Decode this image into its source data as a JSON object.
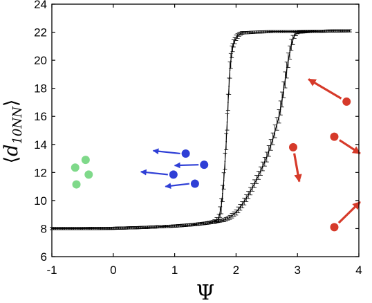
{
  "chart_data": {
    "type": "line",
    "title": "",
    "xlabel": "Ψ",
    "ylabel": "⟨d10NN⟩",
    "ylabel_parts": {
      "open": "⟨",
      "d": "d",
      "sub": "10NN",
      "close": "⟩"
    },
    "xlim": [
      -1,
      4
    ],
    "ylim": [
      6,
      24
    ],
    "xticks": [
      -1,
      0,
      1,
      2,
      3,
      4
    ],
    "yticks": [
      6,
      8,
      10,
      12,
      14,
      16,
      18,
      20,
      22,
      24
    ],
    "grid": false,
    "legend": "none",
    "series": [
      {
        "values": [
          [
            -1.0,
            8.0
          ],
          [
            -0.5,
            8.0
          ],
          [
            0.0,
            8.02
          ],
          [
            0.5,
            8.08
          ],
          [
            1.0,
            8.18
          ],
          [
            1.3,
            8.28
          ],
          [
            1.5,
            8.38
          ],
          [
            1.65,
            8.5
          ],
          [
            1.72,
            8.75
          ],
          [
            1.76,
            9.6
          ],
          [
            1.8,
            11.4
          ],
          [
            1.84,
            14.2
          ],
          [
            1.87,
            17.0
          ],
          [
            1.9,
            19.3
          ],
          [
            1.93,
            20.6
          ],
          [
            1.96,
            21.2
          ],
          [
            2.0,
            21.6
          ],
          [
            2.05,
            21.85
          ],
          [
            2.1,
            21.95
          ],
          [
            2.3,
            22.0
          ],
          [
            2.6,
            22.05
          ],
          [
            3.0,
            22.05
          ],
          [
            3.5,
            22.08
          ],
          [
            3.85,
            22.1
          ]
        ]
      },
      {
        "values": [
          [
            -1.0,
            8.0
          ],
          [
            -0.5,
            8.0
          ],
          [
            0.0,
            8.02
          ],
          [
            0.5,
            8.08
          ],
          [
            1.0,
            8.18
          ],
          [
            1.3,
            8.28
          ],
          [
            1.5,
            8.38
          ],
          [
            1.65,
            8.48
          ],
          [
            1.8,
            8.6
          ],
          [
            1.9,
            8.8
          ],
          [
            2.0,
            9.15
          ],
          [
            2.1,
            9.7
          ],
          [
            2.2,
            10.4
          ],
          [
            2.3,
            11.2
          ],
          [
            2.4,
            12.1
          ],
          [
            2.5,
            13.1
          ],
          [
            2.6,
            14.4
          ],
          [
            2.7,
            16.0
          ],
          [
            2.75,
            17.2
          ],
          [
            2.8,
            18.6
          ],
          [
            2.85,
            20.0
          ],
          [
            2.9,
            21.1
          ],
          [
            2.95,
            21.8
          ],
          [
            3.0,
            22.0
          ],
          [
            3.2,
            22.05
          ],
          [
            3.5,
            22.08
          ],
          [
            3.85,
            22.1
          ]
        ]
      }
    ],
    "insets": {
      "green_dots": {
        "color": "#7fd98a",
        "points": [
          [
            -0.45,
            12.9
          ],
          [
            -0.62,
            12.35
          ],
          [
            -0.4,
            11.85
          ],
          [
            -0.6,
            11.15
          ]
        ]
      },
      "blue_dots": {
        "color": "#2f3fd6",
        "arrows": [
          {
            "from": [
              1.18,
              13.35
            ],
            "to": [
              0.65,
              13.55
            ]
          },
          {
            "from": [
              1.48,
              12.55
            ],
            "to": [
              1.0,
              12.5
            ]
          },
          {
            "from": [
              0.98,
              11.85
            ],
            "to": [
              0.45,
              12.05
            ]
          },
          {
            "from": [
              1.33,
              11.2
            ],
            "to": [
              0.85,
              11.0
            ]
          }
        ]
      },
      "red_dots": {
        "color": "#d63a2a",
        "arrows": [
          {
            "from": [
              3.8,
              17.05
            ],
            "to": [
              3.18,
              18.65
            ]
          },
          {
            "from": [
              3.6,
              14.55
            ],
            "to": [
              4.02,
              13.35
            ]
          },
          {
            "from": [
              2.93,
              13.8
            ],
            "to": [
              3.03,
              11.35
            ]
          },
          {
            "from": [
              3.6,
              8.1
            ],
            "to": [
              4.02,
              9.9
            ]
          }
        ]
      }
    }
  }
}
